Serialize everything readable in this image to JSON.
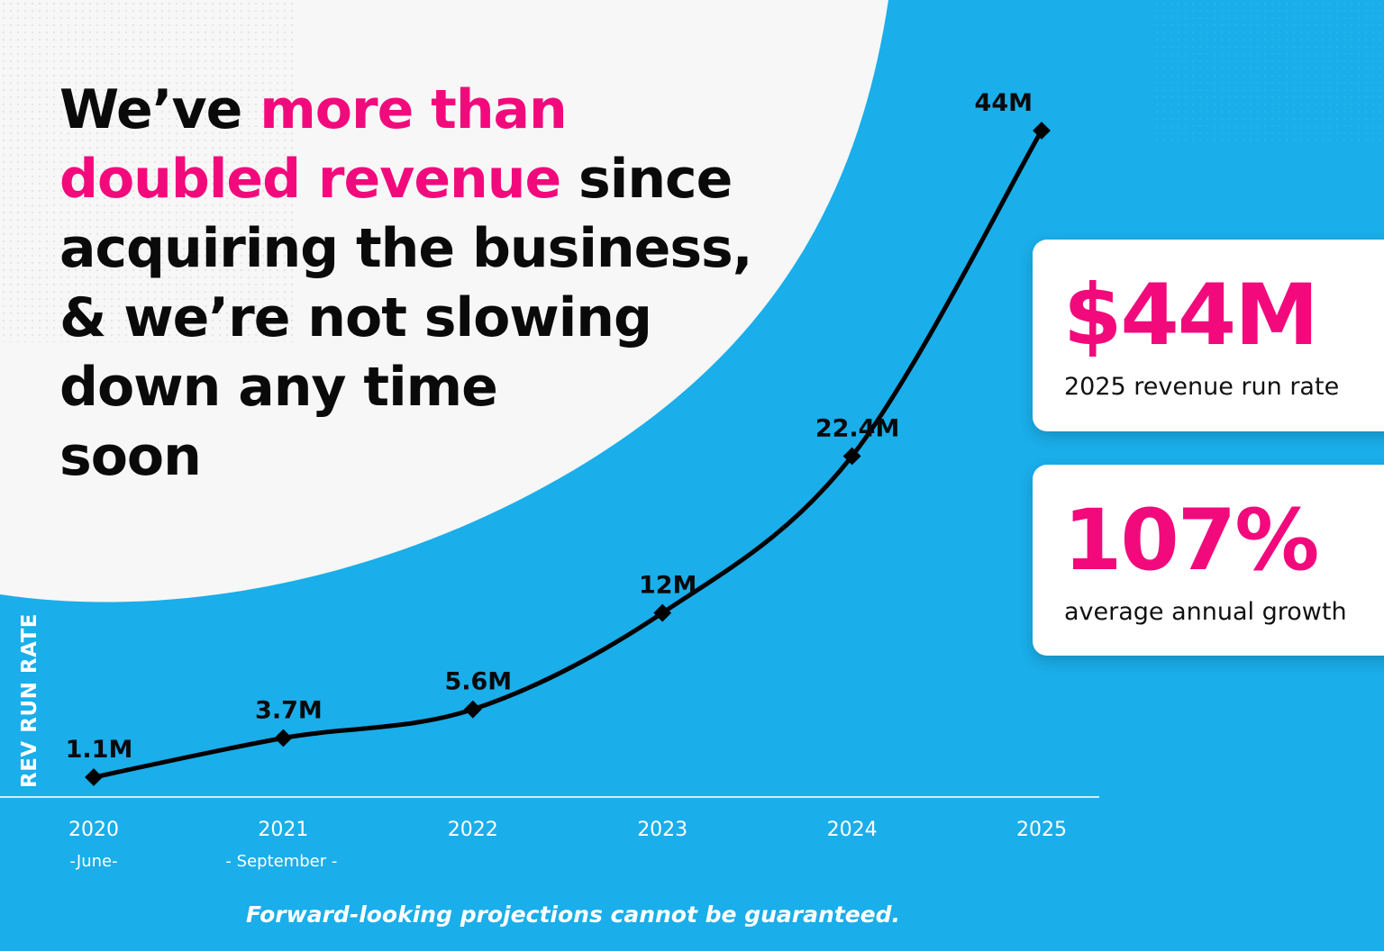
{
  "headline": {
    "lines": [
      [
        {
          "text": "We’ve ",
          "highlight": false
        },
        {
          "text": "more than",
          "highlight": true
        }
      ],
      [
        {
          "text": "doubled revenue",
          "highlight": true
        },
        {
          "text": " since",
          "highlight": false
        }
      ],
      [
        {
          "text": "acquiring the business,",
          "highlight": false
        }
      ],
      [
        {
          "text": "& we’re not slowing",
          "highlight": false
        }
      ],
      [
        {
          "text": "down any time",
          "highlight": false
        }
      ],
      [
        {
          "text": "soon",
          "highlight": false
        }
      ]
    ]
  },
  "stats": {
    "run_rate": {
      "value": "$44M",
      "label": "2025 revenue run rate"
    },
    "growth": {
      "value": "107%",
      "label": "average annual growth"
    }
  },
  "disclaimer": "Forward-looking projections cannot be guaranteed.",
  "colors": {
    "accent": "#f20a7c",
    "background": "#1aaeea",
    "panel": "#f7f7f7",
    "line": "#000000"
  },
  "chart_data": {
    "type": "line",
    "ylabel": "REV RUN RATE",
    "categories": [
      "2020",
      "2021",
      "2022",
      "2023",
      "2024",
      "2025"
    ],
    "category_sublabels": [
      "-June-",
      "- September -",
      "",
      "",
      "",
      ""
    ],
    "values": [
      1.1,
      3.7,
      5.6,
      12,
      22.4,
      44
    ],
    "data_labels": [
      "1.1M",
      "3.7M",
      "5.6M",
      "12M",
      "22.4M",
      "44M"
    ],
    "grid": false
  }
}
